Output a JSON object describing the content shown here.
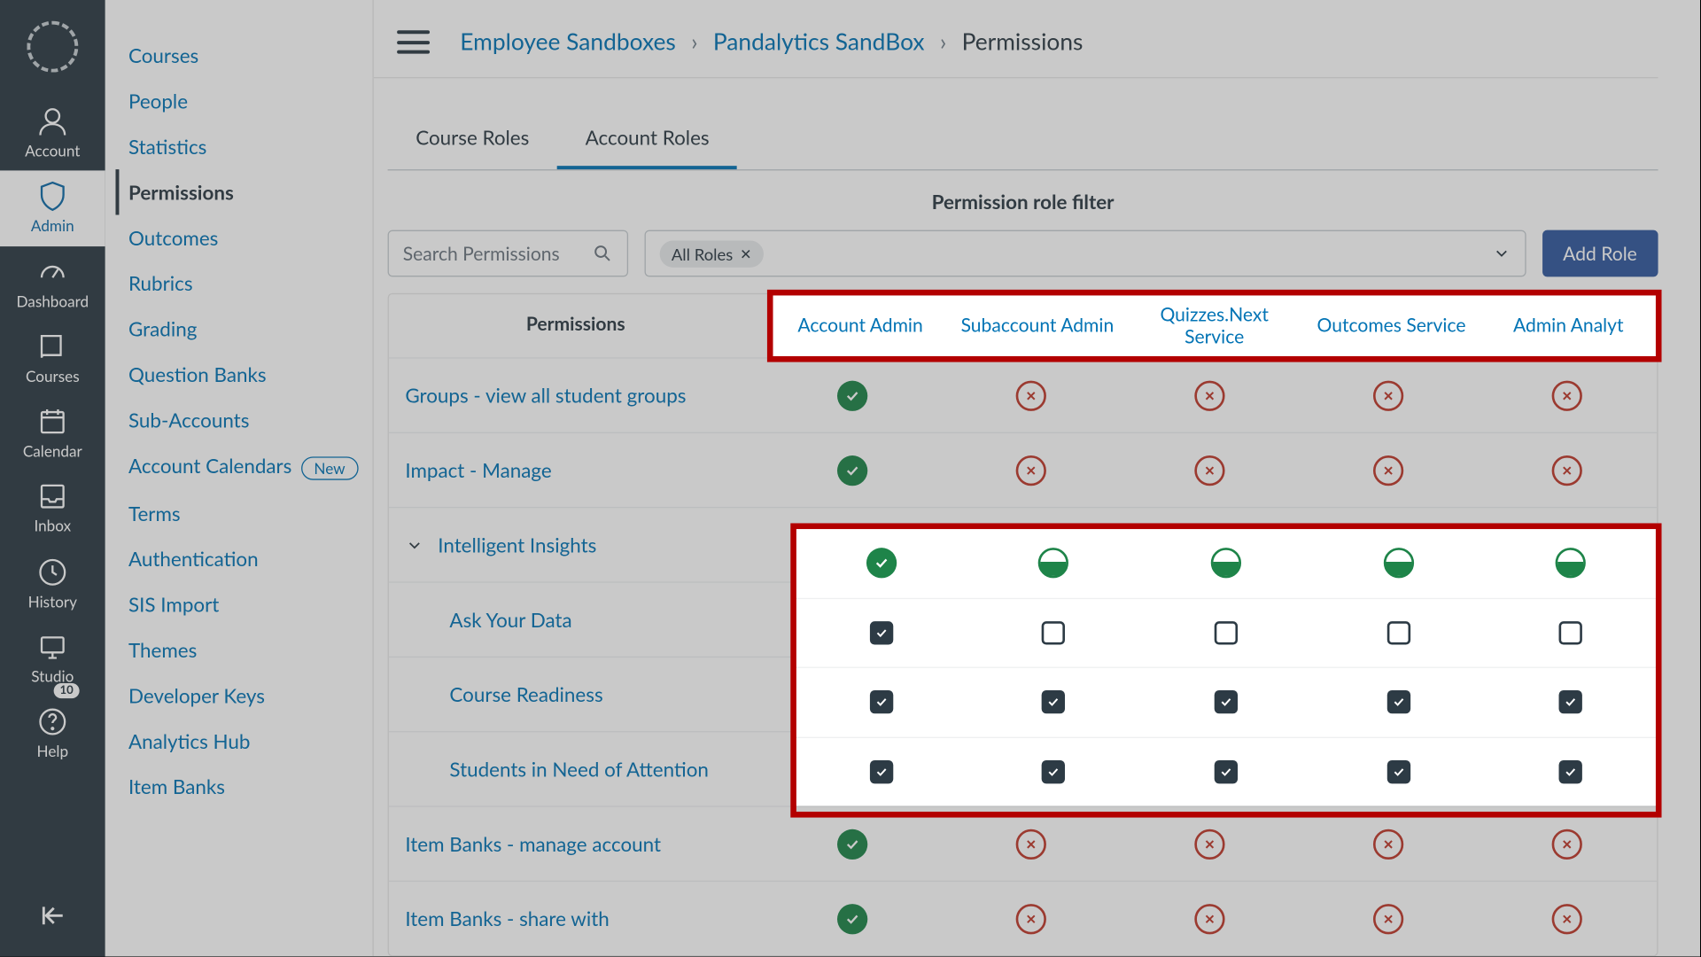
{
  "globalnav": {
    "items": [
      {
        "name": "account",
        "label": "Account"
      },
      {
        "name": "admin",
        "label": "Admin",
        "active": true
      },
      {
        "name": "dashboard",
        "label": "Dashboard"
      },
      {
        "name": "courses",
        "label": "Courses"
      },
      {
        "name": "calendar",
        "label": "Calendar"
      },
      {
        "name": "inbox",
        "label": "Inbox"
      },
      {
        "name": "history",
        "label": "History"
      },
      {
        "name": "studio",
        "label": "Studio"
      },
      {
        "name": "help",
        "label": "Help",
        "badge": "10"
      }
    ]
  },
  "breadcrumbs": {
    "a": "Employee Sandboxes",
    "b": "Pandalytics SandBox",
    "c": "Permissions"
  },
  "subnav": {
    "items": [
      {
        "label": "Courses"
      },
      {
        "label": "People"
      },
      {
        "label": "Statistics"
      },
      {
        "label": "Permissions",
        "current": true
      },
      {
        "label": "Outcomes"
      },
      {
        "label": "Rubrics"
      },
      {
        "label": "Grading"
      },
      {
        "label": "Question Banks"
      },
      {
        "label": "Sub-Accounts"
      },
      {
        "label": "Account Calendars",
        "pill": "New"
      },
      {
        "label": "Terms"
      },
      {
        "label": "Authentication"
      },
      {
        "label": "SIS Import"
      },
      {
        "label": "Themes"
      },
      {
        "label": "Developer Keys"
      },
      {
        "label": "Analytics Hub"
      },
      {
        "label": "Item Banks"
      }
    ]
  },
  "tabs": {
    "course": "Course Roles",
    "account": "Account Roles"
  },
  "filter_label": "Permission role filter",
  "search_placeholder": "Search Permissions",
  "all_roles_chip": "All Roles",
  "add_role": "Add Role",
  "perm_header": "Permissions",
  "roles": [
    "Account Admin",
    "Subaccount Admin",
    "Quizzes.Next Service",
    "Outcomes Service",
    "Admin Analyt"
  ],
  "rows": [
    {
      "name": "Groups - view all student groups",
      "type": "std",
      "cells": [
        "full",
        "x",
        "x",
        "x",
        "x"
      ]
    },
    {
      "name": "Impact - Manage",
      "type": "std",
      "cells": [
        "full",
        "x",
        "x",
        "x",
        "x"
      ]
    },
    {
      "name": "Intelligent Insights",
      "type": "parent",
      "cells": [
        "full",
        "half",
        "half",
        "half",
        "half"
      ]
    },
    {
      "name": "Ask Your Data",
      "type": "child",
      "cells": [
        "cbc",
        "cb",
        "cb",
        "cb",
        "cb"
      ]
    },
    {
      "name": "Course Readiness",
      "type": "child",
      "cells": [
        "cbc",
        "cbc",
        "cbc",
        "cbc",
        "cbc"
      ]
    },
    {
      "name": "Students in Need of Attention",
      "type": "child",
      "cells": [
        "cbc",
        "cbc",
        "cbc",
        "cbc",
        "cbc"
      ]
    },
    {
      "name": "Item Banks - manage account",
      "type": "std",
      "cells": [
        "full",
        "x",
        "x",
        "x",
        "x"
      ]
    },
    {
      "name": "Item Banks - share with",
      "type": "std",
      "cells": [
        "full",
        "x",
        "x",
        "x",
        "x"
      ]
    }
  ],
  "colors": {
    "link": "#0374b5",
    "navbg": "#2d3b45",
    "green": "#1e8449",
    "red": "#c0392b",
    "hl": "#b30000",
    "addbtn": "#33599e"
  }
}
